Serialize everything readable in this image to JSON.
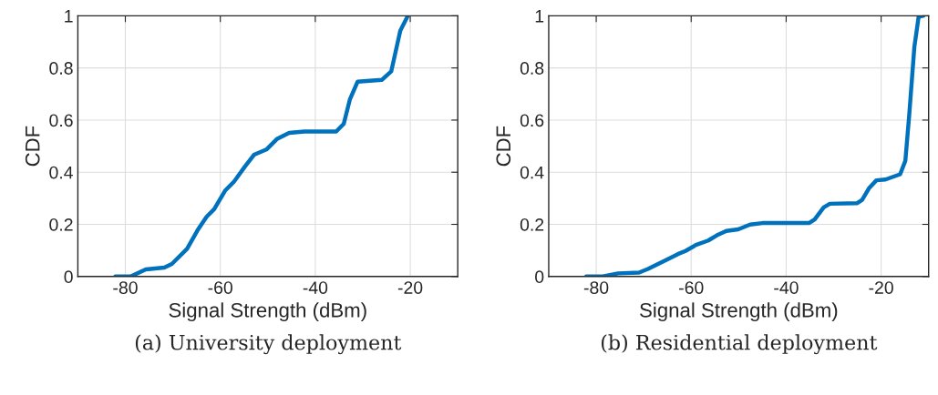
{
  "chart_data": [
    {
      "type": "line",
      "xlabel": "Signal Strength (dBm)",
      "ylabel": "CDF",
      "annotations": [
        "(a) University deployment"
      ],
      "xlim": [
        -90,
        -10
      ],
      "xticks": [
        -80,
        -60,
        -40,
        -20
      ],
      "ylim": [
        0,
        1
      ],
      "yticks": [
        0,
        0.2,
        0.4,
        0.6,
        0.8,
        1
      ],
      "grid": true,
      "marker": "none",
      "line_style": "solid",
      "series": [
        {
          "color": "#0072bd",
          "x": [
            -82.1,
            -78.9,
            -75.7,
            -71.8,
            -70.2,
            -67.0,
            -64.8,
            -62.9,
            -61.3,
            -59.0,
            -57.1,
            -54.8,
            -52.9,
            -50.3,
            -48.1,
            -45.5,
            -42.3,
            -35.6,
            -34.0,
            -32.7,
            -31.1,
            -26.0,
            -24.0,
            -22.1,
            -20.5
          ],
          "values": [
            0,
            0,
            0.027,
            0.034,
            0.048,
            0.106,
            0.177,
            0.229,
            0.258,
            0.329,
            0.364,
            0.422,
            0.467,
            0.487,
            0.527,
            0.551,
            0.556,
            0.556,
            0.586,
            0.68,
            0.747,
            0.754,
            0.787,
            0.943,
            1.0
          ]
        }
      ]
    },
    {
      "type": "line",
      "xlabel": "Signal Strength (dBm)",
      "ylabel": "CDF",
      "annotations": [
        "(b) Residential deployment"
      ],
      "xlim": [
        -90,
        -10
      ],
      "xticks": [
        -80,
        -60,
        -40,
        -20
      ],
      "ylim": [
        0,
        1
      ],
      "yticks": [
        0,
        0.2,
        0.4,
        0.6,
        0.8,
        1
      ],
      "grid": true,
      "marker": "none",
      "line_style": "solid",
      "series": [
        {
          "color": "#0072bd",
          "x": [
            -82.1,
            -78.6,
            -75.4,
            -71.0,
            -69.1,
            -65.3,
            -62.8,
            -61.2,
            -59.0,
            -56.4,
            -54.6,
            -52.6,
            -50.1,
            -47.6,
            -45.0,
            -35.2,
            -34.0,
            -32.1,
            -30.8,
            -25.1,
            -24.0,
            -22.5,
            -21.0,
            -19.1,
            -16.0,
            -14.9,
            -14.1,
            -13.0,
            -12.1,
            -11.1
          ],
          "values": [
            0,
            0,
            0.012,
            0.015,
            0.029,
            0.063,
            0.086,
            0.098,
            0.121,
            0.138,
            0.158,
            0.175,
            0.181,
            0.199,
            0.205,
            0.205,
            0.219,
            0.265,
            0.279,
            0.281,
            0.294,
            0.34,
            0.369,
            0.372,
            0.392,
            0.444,
            0.616,
            0.881,
            0.997,
            1.0
          ]
        }
      ]
    }
  ]
}
